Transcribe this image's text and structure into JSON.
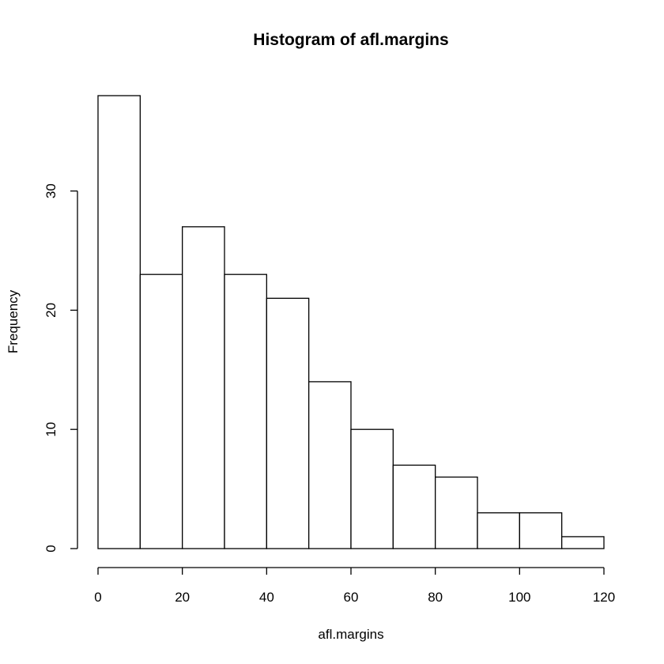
{
  "chart_data": {
    "type": "histogram",
    "title": "Histogram of afl.margins",
    "xlabel": "afl.margins",
    "ylabel": "Frequency",
    "bin_edges": [
      0,
      10,
      20,
      30,
      40,
      50,
      60,
      70,
      80,
      90,
      100,
      110,
      120
    ],
    "values": [
      38,
      23,
      27,
      23,
      21,
      14,
      10,
      7,
      6,
      3,
      3,
      1
    ],
    "xlim": [
      0,
      120
    ],
    "ylim": [
      0,
      38
    ],
    "x_ticks": [
      0,
      20,
      40,
      60,
      80,
      100,
      120
    ],
    "y_ticks": [
      0,
      10,
      20,
      30
    ],
    "x_tick_labels": [
      "0",
      "20",
      "40",
      "60",
      "80",
      "100",
      "120"
    ],
    "y_tick_labels": [
      "0",
      "10",
      "20",
      "30"
    ],
    "bar_fill": "#ffffff",
    "bar_stroke": "#000000",
    "grid": false
  }
}
